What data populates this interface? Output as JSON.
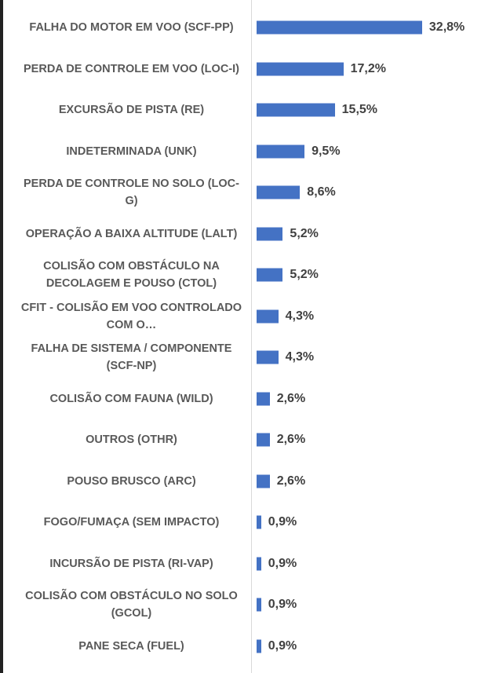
{
  "chart_data": {
    "type": "bar",
    "orientation": "horizontal",
    "color": "#4472c4",
    "categories": [
      "FALHA DO MOTOR EM VOO (SCF-PP)",
      "PERDA DE CONTROLE EM VOO (LOC-I)",
      "EXCURSÃO DE PISTA (RE)",
      "INDETERMINADA (UNK)",
      "PERDA DE CONTROLE NO SOLO (LOC-G)",
      "OPERAÇÃO A BAIXA ALTITUDE (LALT)",
      "COLISÃO COM OBSTÁCULO NA DECOLAGEM E POUSO (CTOL)",
      "CFIT - COLISÃO EM VOO CONTROLADO COM O…",
      "FALHA DE SISTEMA / COMPONENTE (SCF-NP)",
      "COLISÃO COM FAUNA (WILD)",
      "OUTROS (OTHR)",
      "POUSO BRUSCO (ARC)",
      "FOGO/FUMAÇA (SEM IMPACTO)",
      "INCURSÃO DE PISTA (RI-VAP)",
      "COLISÃO COM OBSTÁCULO NO SOLO (GCOL)",
      "PANE SECA (FUEL)"
    ],
    "values": [
      32.8,
      17.2,
      15.5,
      9.5,
      8.6,
      5.2,
      5.2,
      4.3,
      4.3,
      2.6,
      2.6,
      2.6,
      0.9,
      0.9,
      0.9,
      0.9
    ],
    "value_labels": [
      "32,8%",
      "17,2%",
      "15,5%",
      "9,5%",
      "8,6%",
      "5,2%",
      "5,2%",
      "4,3%",
      "4,3%",
      "2,6%",
      "2,6%",
      "2,6%",
      "0,9%",
      "0,9%",
      "0,9%",
      "0,9%"
    ]
  }
}
